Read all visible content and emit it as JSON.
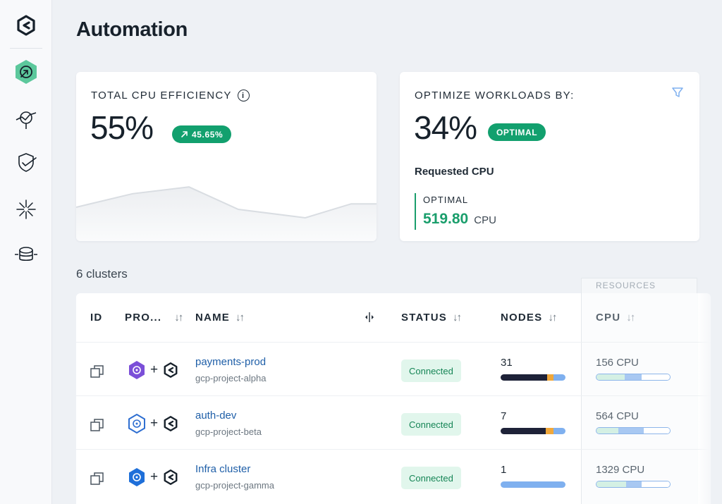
{
  "page": {
    "title": "Automation"
  },
  "sidebar": {
    "items": [
      {
        "icon": "automation-icon",
        "active": true
      },
      {
        "icon": "cost-monitoring-icon",
        "active": false
      },
      {
        "icon": "security-icon",
        "active": false
      },
      {
        "icon": "spark-icon",
        "active": false
      },
      {
        "icon": "database-icon",
        "active": false
      }
    ]
  },
  "cpu_efficiency": {
    "label": "TOTAL CPU EFFICIENCY",
    "value": "55%",
    "change": "45.65%",
    "trend_values": [
      0.3,
      0.62,
      0.78,
      0.25,
      0.05,
      0.38,
      0.38
    ]
  },
  "optimize": {
    "label": "OPTIMIZE WORKLOADS BY:",
    "value": "34%",
    "badge": "OPTIMAL",
    "requested_label": "Requested CPU",
    "optimal_label": "OPTIMAL",
    "optimal_value": "519.80",
    "optimal_unit": "CPU"
  },
  "clusters": {
    "count_label": "6 clusters",
    "resources_label": "RESOURCES",
    "columns": {
      "id": "ID",
      "provider": "PRO...",
      "name": "NAME",
      "status": "STATUS",
      "nodes": "NODES",
      "cpu": "CPU"
    },
    "rows": [
      {
        "provider_icon": "kubernetes-purple-icon",
        "provider_color": "#7b4fd8",
        "name": "payments-prod",
        "project": "gcp-project-alpha",
        "status": "Connected",
        "nodes": "31",
        "nodes_split": [
          0.72,
          0.1,
          0.18
        ],
        "cpu": "156 CPU",
        "cpu_split": [
          0.38,
          0.24,
          0.38
        ]
      },
      {
        "provider_icon": "kubernetes-blue-outline-icon",
        "provider_color": "#2f6fd1",
        "name": "auth-dev",
        "project": "gcp-project-beta",
        "status": "Connected",
        "nodes": "7",
        "nodes_split": [
          0.7,
          0.12,
          0.18
        ],
        "cpu": "564 CPU",
        "cpu_split": [
          0.3,
          0.34,
          0.36
        ]
      },
      {
        "provider_icon": "kubernetes-blue-icon",
        "provider_color": "#1e6fd9",
        "name": "Infra cluster",
        "project": "gcp-project-gamma",
        "status": "Connected",
        "nodes": "1",
        "nodes_split": [
          0,
          0,
          1.0
        ],
        "cpu": "1329 CPU",
        "cpu_split": [
          0.4,
          0.22,
          0.38
        ]
      }
    ]
  },
  "colors": {
    "accent_green": "#12a06e",
    "link_blue": "#1f5fa8",
    "bar_dark": "#1e2238",
    "bar_orange": "#f0a73a",
    "bar_blue": "#7fb0ef",
    "cpu_light": "#d4f0e4",
    "cpu_mid": "#a8c8f2"
  }
}
